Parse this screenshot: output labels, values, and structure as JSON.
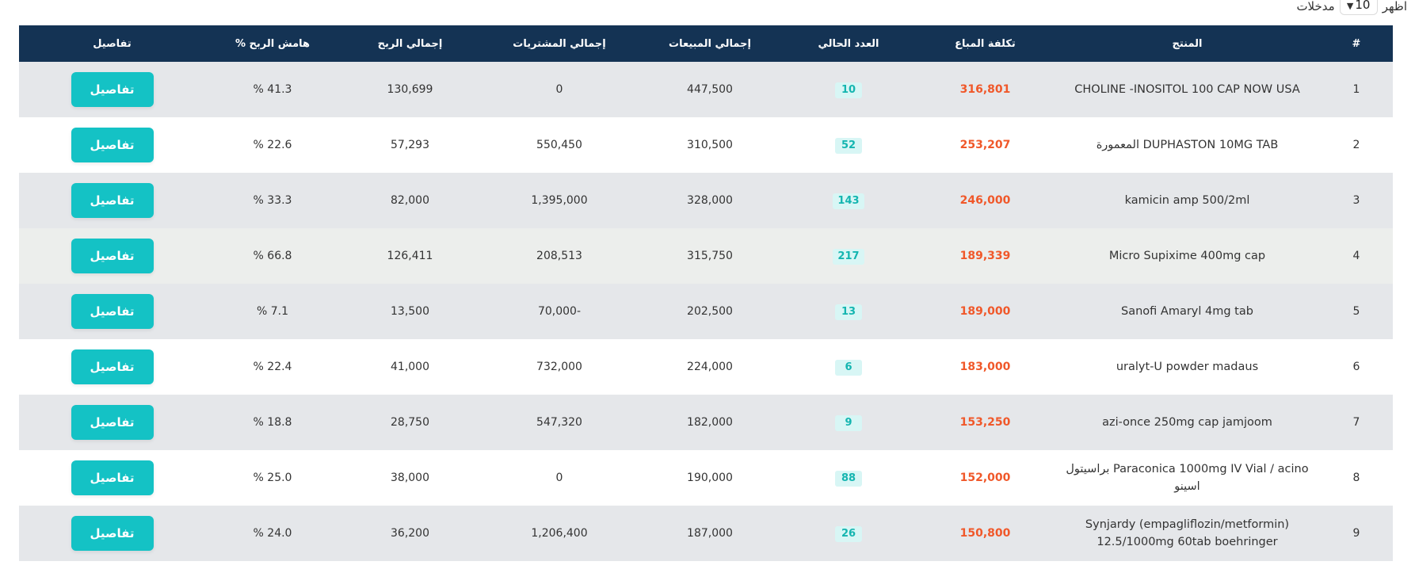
{
  "entries": {
    "show_label": "اظهر",
    "value": "10",
    "suffix": "مدخلات"
  },
  "table": {
    "headers": [
      "#",
      "المنتج",
      "تكلفة المباع",
      "العدد الحالي",
      "إجمالي المبيعات",
      "إجمالي المشتريات",
      "إجمالي الربح",
      "هامش الربح %",
      "تفاصيل"
    ],
    "rows": [
      {
        "num": "1",
        "product": "CHOLINE -INOSITOL 100 CAP NOW USA",
        "cost": "316,801",
        "qty": "10",
        "sales": "447,500",
        "purchases": "0",
        "profit": "130,699",
        "margin": "41.3 %",
        "action": "تفاصيل"
      },
      {
        "num": "2",
        "product": "DUPHASTON 10MG TAB المعمورة",
        "cost": "253,207",
        "qty": "52",
        "sales": "310,500",
        "purchases": "550,450",
        "profit": "57,293",
        "margin": "22.6 %",
        "action": "تفاصيل"
      },
      {
        "num": "3",
        "product": "kamicin amp 500/2ml",
        "cost": "246,000",
        "qty": "143",
        "sales": "328,000",
        "purchases": "1,395,000",
        "profit": "82,000",
        "margin": "33.3 %",
        "action": "تفاصيل"
      },
      {
        "num": "4",
        "product": "Micro Supixime 400mg cap",
        "cost": "189,339",
        "qty": "217",
        "sales": "315,750",
        "purchases": "208,513",
        "profit": "126,411",
        "margin": "66.8 %",
        "action": "تفاصيل"
      },
      {
        "num": "5",
        "product": "Sanofi Amaryl 4mg tab",
        "cost": "189,000",
        "qty": "13",
        "sales": "202,500",
        "purchases": "-70,000",
        "profit": "13,500",
        "margin": "7.1 %",
        "action": "تفاصيل"
      },
      {
        "num": "6",
        "product": "uralyt-U powder madaus",
        "cost": "183,000",
        "qty": "6",
        "sales": "224,000",
        "purchases": "732,000",
        "profit": "41,000",
        "margin": "22.4 %",
        "action": "تفاصيل"
      },
      {
        "num": "7",
        "product": "azi-once 250mg cap jamjoom",
        "cost": "153,250",
        "qty": "9",
        "sales": "182,000",
        "purchases": "547,320",
        "profit": "28,750",
        "margin": "18.8 %",
        "action": "تفاصيل"
      },
      {
        "num": "8",
        "product": "Paraconica 1000mg IV Vial / acino براسيتول اسينو",
        "cost": "152,000",
        "qty": "88",
        "sales": "190,000",
        "purchases": "0",
        "profit": "38,000",
        "margin": "25.0 %",
        "action": "تفاصيل"
      },
      {
        "num": "9",
        "product": "Synjardy (empagliflozin/metformin) 12.5/1000mg 60tab boehringer",
        "cost": "150,800",
        "qty": "26",
        "sales": "187,000",
        "purchases": "1,206,400",
        "profit": "36,200",
        "margin": "24.0 %",
        "action": "تفاصيل"
      }
    ]
  },
  "colors": {
    "header_bg": "#143354",
    "accent": "#14c2c5",
    "cost": "#f0582a"
  }
}
